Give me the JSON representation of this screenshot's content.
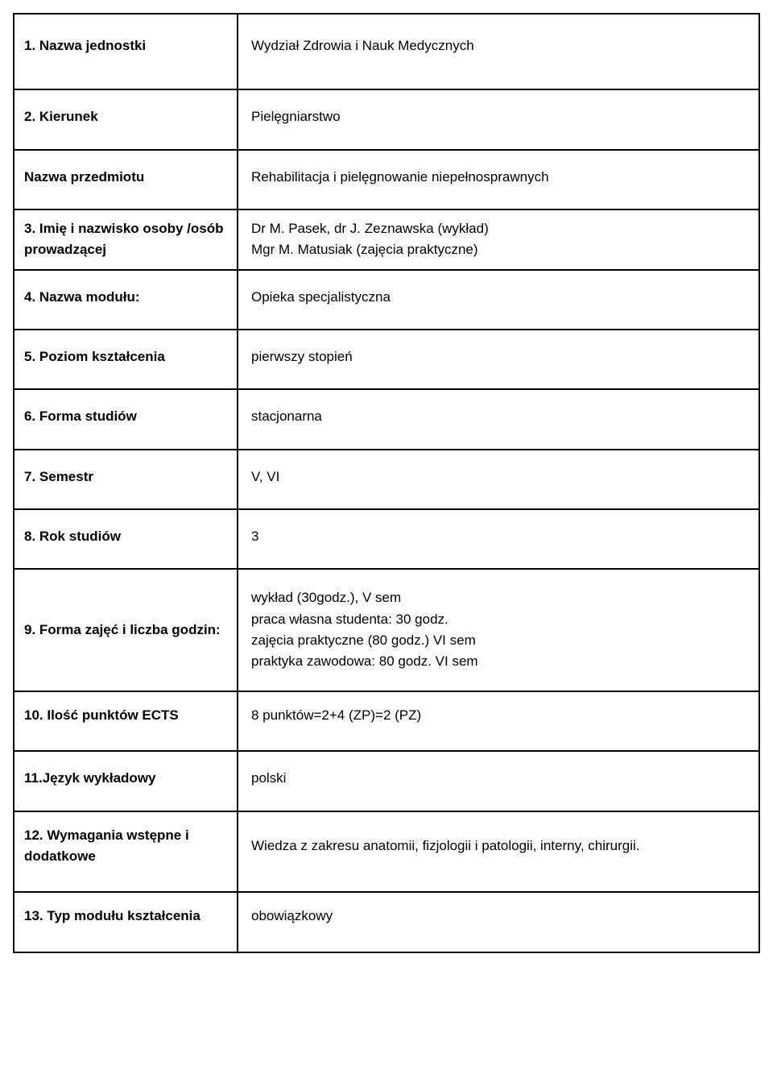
{
  "rows": [
    {
      "label": "1. Nazwa jednostki",
      "value": "Wydział Zdrowia i Nauk Medycznych",
      "cls": "h-tall"
    },
    {
      "label": "2. Kierunek",
      "value": "Pielęgniarstwo",
      "cls": "h-med"
    },
    {
      "label": "Nazwa przedmiotu",
      "value": "Rehabilitacja i pielęgnowanie niepełnosprawnych",
      "cls": "h-med"
    },
    {
      "label": "3. Imię i nazwisko osoby /osób prowadzącej",
      "value": "Dr M. Pasek, dr J. Zeznawska (wykład)\nMgr M. Matusiak (zajęcia praktyczne)",
      "cls": "h-3line"
    },
    {
      "label": "4. Nazwa modułu:",
      "value": "Opieka specjalistyczna",
      "cls": "h-med"
    },
    {
      "label": "5. Poziom kształcenia",
      "value": "pierwszy stopień",
      "cls": "h-med"
    },
    {
      "label": "6. Forma studiów",
      "value": " stacjonarna",
      "cls": "h-med"
    },
    {
      "label": "7. Semestr",
      "value": "V, VI",
      "cls": "h-med"
    },
    {
      "label": "8. Rok studiów",
      "value": "3",
      "cls": "h-med"
    },
    {
      "label": "9. Forma zajęć i liczba godzin:",
      "value": "wykład (30godz.), V sem\npraca własna studenta: 30 godz.\nzajęcia praktyczne (80 godz.) VI sem\npraktyka zawodowa: 80 godz. VI sem",
      "cls": "h-4line"
    },
    {
      "label": "10. Ilość punktów ECTS",
      "value": "8 punktów=2+4 (ZP)=2 (PZ)",
      "cls": "h-2line"
    },
    {
      "label": "11.Język wykładowy",
      "value": "polski",
      "cls": "h-med"
    },
    {
      "label": "12. Wymagania wstępne i dodatkowe",
      "value": "Wiedza z zakresu anatomii, fizjologii i patologii, interny, chirurgii.",
      "cls": "h-2line"
    },
    {
      "label": "13. Typ modułu kształcenia",
      "value": "obowiązkowy",
      "cls": "h-2line"
    }
  ],
  "colors": {
    "border": "#000000",
    "background": "#ffffff",
    "text": "#000000"
  }
}
